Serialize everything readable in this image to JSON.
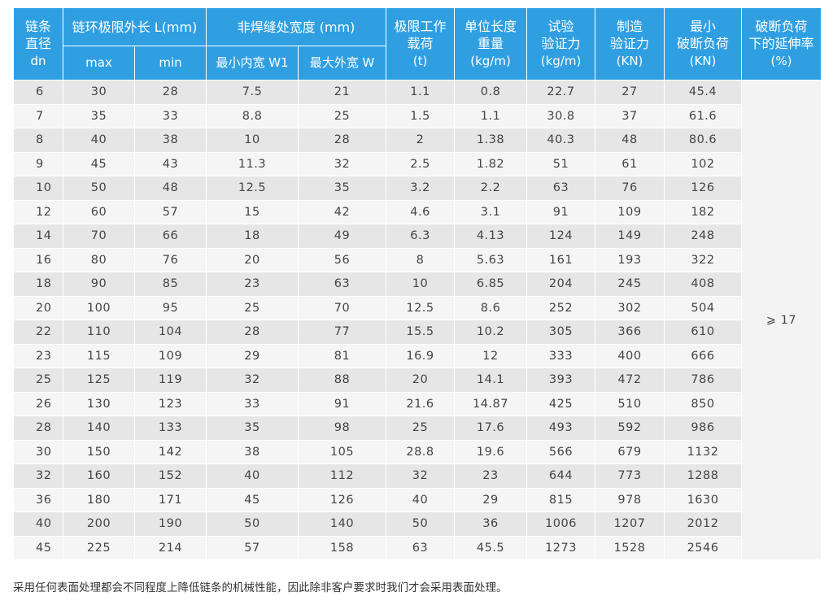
{
  "headers": {
    "dn": [
      "链条",
      "直径",
      "dn"
    ],
    "length": "链环极限外长 L(mm)",
    "length_max": "max",
    "length_min": "min",
    "width": "非焊缝处宽度 (mm)",
    "width_inner": "最小内宽 W1",
    "width_outer": "最大外宽 W",
    "load": [
      "极限工作",
      "载荷",
      "(t)"
    ],
    "weight": [
      "单位长度",
      "重量",
      "(kg/m)"
    ],
    "test_force": [
      "试验",
      "验证力",
      "(kg/m)"
    ],
    "mfg_force": [
      "制造",
      "验证力",
      "(KN)"
    ],
    "breaking": [
      "最小",
      "破断负荷",
      "(KN)"
    ],
    "elongation": [
      "破断负荷",
      "下的延伸率",
      "(%)"
    ]
  },
  "elongation_value": "⩾ 17",
  "rows": [
    [
      "6",
      "30",
      "28",
      "7.5",
      "21",
      "1.1",
      "0.8",
      "22.7",
      "27",
      "45.4"
    ],
    [
      "7",
      "35",
      "33",
      "8.8",
      "25",
      "1.5",
      "1.1",
      "30.8",
      "37",
      "61.6"
    ],
    [
      "8",
      "40",
      "38",
      "10",
      "28",
      "2",
      "1.38",
      "40.3",
      "48",
      "80.6"
    ],
    [
      "9",
      "45",
      "43",
      "11.3",
      "32",
      "2.5",
      "1.82",
      "51",
      "61",
      "102"
    ],
    [
      "10",
      "50",
      "48",
      "12.5",
      "35",
      "3.2",
      "2.2",
      "63",
      "76",
      "126"
    ],
    [
      "12",
      "60",
      "57",
      "15",
      "42",
      "4.6",
      "3.1",
      "91",
      "109",
      "182"
    ],
    [
      "14",
      "70",
      "66",
      "18",
      "49",
      "6.3",
      "4.13",
      "124",
      "149",
      "248"
    ],
    [
      "16",
      "80",
      "76",
      "20",
      "56",
      "8",
      "5.63",
      "161",
      "193",
      "322"
    ],
    [
      "18",
      "90",
      "85",
      "23",
      "63",
      "10",
      "6.85",
      "204",
      "245",
      "408"
    ],
    [
      "20",
      "100",
      "95",
      "25",
      "70",
      "12.5",
      "8.6",
      "252",
      "302",
      "504"
    ],
    [
      "22",
      "110",
      "104",
      "28",
      "77",
      "15.5",
      "10.2",
      "305",
      "366",
      "610"
    ],
    [
      "23",
      "115",
      "109",
      "29",
      "81",
      "16.9",
      "12",
      "333",
      "400",
      "666"
    ],
    [
      "25",
      "125",
      "119",
      "32",
      "88",
      "20",
      "14.1",
      "393",
      "472",
      "786"
    ],
    [
      "26",
      "130",
      "123",
      "33",
      "91",
      "21.6",
      "14.87",
      "425",
      "510",
      "850"
    ],
    [
      "28",
      "140",
      "133",
      "35",
      "98",
      "25",
      "17.6",
      "493",
      "592",
      "986"
    ],
    [
      "30",
      "150",
      "142",
      "38",
      "105",
      "28.8",
      "19.6",
      "566",
      "679",
      "1132"
    ],
    [
      "32",
      "160",
      "152",
      "40",
      "112",
      "32",
      "23",
      "644",
      "773",
      "1288"
    ],
    [
      "36",
      "180",
      "171",
      "45",
      "126",
      "40",
      "29",
      "815",
      "978",
      "1630"
    ],
    [
      "40",
      "200",
      "190",
      "50",
      "140",
      "50",
      "36",
      "1006",
      "1207",
      "2012"
    ],
    [
      "45",
      "225",
      "214",
      "57",
      "158",
      "63",
      "45.5",
      "1273",
      "1528",
      "2546"
    ]
  ],
  "note": "采用任何表面处理都会不同程度上降低链条的机械性能，因此除非客户要求时我们才会采用表面处理。"
}
